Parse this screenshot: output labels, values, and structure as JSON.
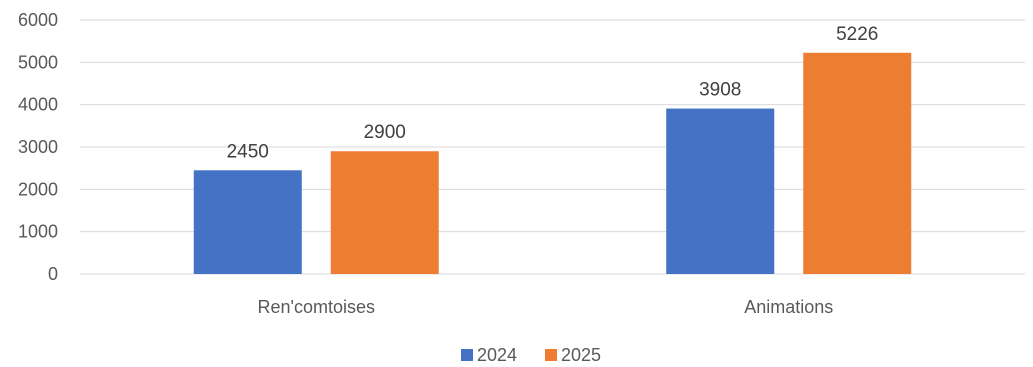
{
  "chart_data": {
    "type": "bar",
    "title": "",
    "xlabel": "",
    "ylabel": "",
    "categories": [
      "Ren'comtoises",
      "Animations"
    ],
    "series": [
      {
        "name": "2024",
        "values": [
          2450,
          3908
        ],
        "color": "#4472C4"
      },
      {
        "name": "2025",
        "values": [
          2900,
          5226
        ],
        "color": "#ED7D31"
      }
    ],
    "ylim": [
      0,
      6000
    ],
    "yticks": [
      "0",
      "1000",
      "2000",
      "3000",
      "4000",
      "5000",
      "6000"
    ],
    "grid": true,
    "data_labels": true,
    "legend_position": "bottom"
  }
}
